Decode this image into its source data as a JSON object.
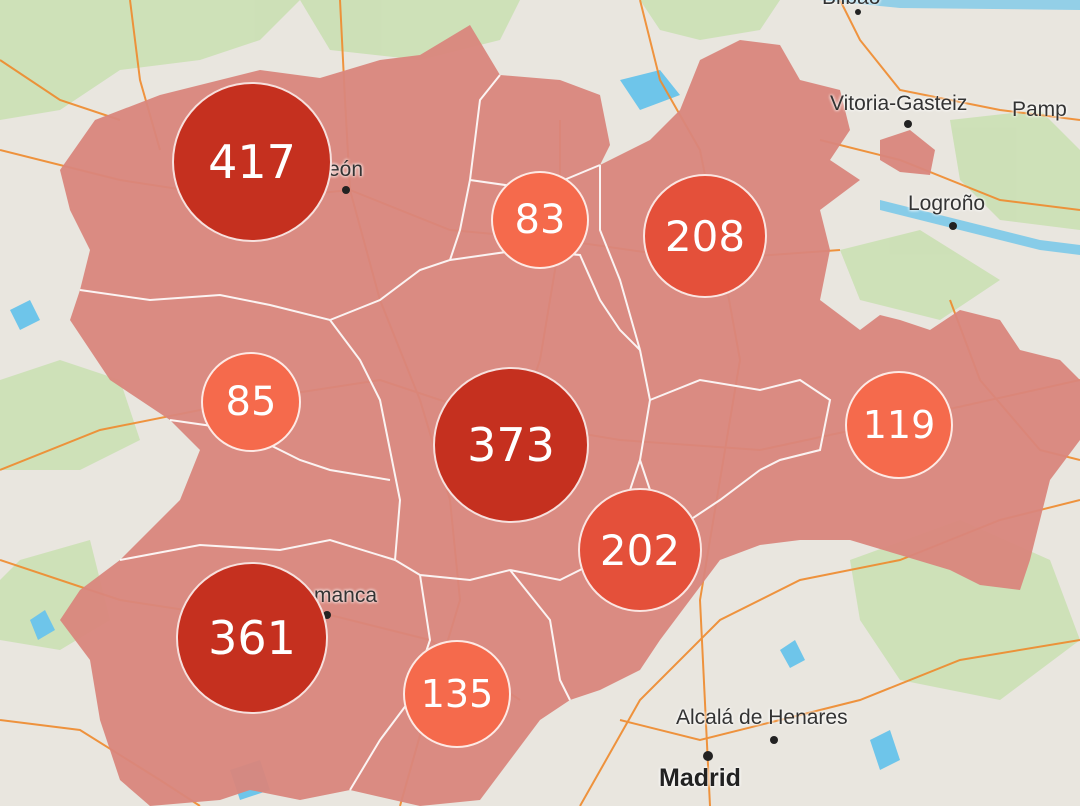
{
  "map": {
    "colors": {
      "base": "#e9e6df",
      "region_fill": "#d9867c",
      "region_border": "#ffffff",
      "road": "#ef8a2c",
      "water": "#6ec5ea",
      "forest": "#c9dfb1",
      "cluster_large": "#c5301f",
      "cluster_medium": "#e4503a",
      "cluster_small": "#f56a4c"
    },
    "cities": [
      {
        "id": "bilbao",
        "name": "Bilbao"
      },
      {
        "id": "vitoria",
        "name": "Vitoria-Gasteiz"
      },
      {
        "id": "pamplona",
        "name": "Pamp"
      },
      {
        "id": "logrono",
        "name": "Logroño"
      },
      {
        "id": "leon",
        "name": "eón"
      },
      {
        "id": "salamanca",
        "name": "manca"
      },
      {
        "id": "alcala",
        "name": "Alcalá de Henares"
      },
      {
        "id": "madrid",
        "name": "Madrid"
      }
    ],
    "clusters": [
      {
        "id": "leon-cluster",
        "count": "417",
        "size": "large"
      },
      {
        "id": "palencia-cluster",
        "count": "83",
        "size": "small"
      },
      {
        "id": "burgos-cluster",
        "count": "208",
        "size": "medium"
      },
      {
        "id": "zamora-cluster",
        "count": "85",
        "size": "small"
      },
      {
        "id": "valladolid-cluster",
        "count": "373",
        "size": "large"
      },
      {
        "id": "soria-cluster",
        "count": "119",
        "size": "small"
      },
      {
        "id": "segovia-cluster",
        "count": "202",
        "size": "medium"
      },
      {
        "id": "salamanca-cluster",
        "count": "361",
        "size": "large"
      },
      {
        "id": "avila-cluster",
        "count": "135",
        "size": "small"
      }
    ]
  }
}
